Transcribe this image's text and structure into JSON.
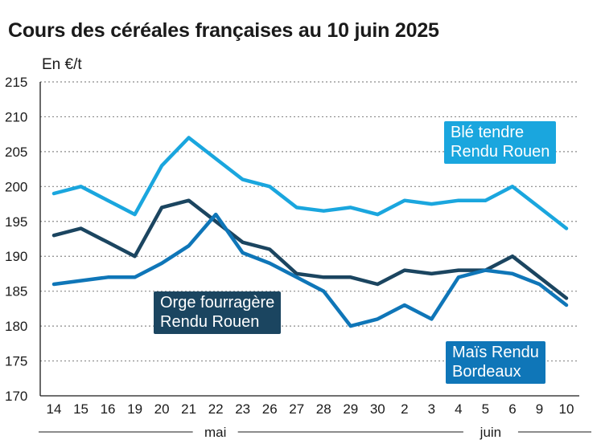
{
  "chart_data": {
    "type": "line",
    "title": "Cours des céréales françaises au 10 juin 2025",
    "ylabel": "En €/t",
    "ylim": [
      170,
      215
    ],
    "yticks": [
      170,
      175,
      180,
      185,
      190,
      195,
      200,
      205,
      210,
      215
    ],
    "categories": [
      "14",
      "15",
      "16",
      "19",
      "20",
      "21",
      "22",
      "23",
      "26",
      "27",
      "28",
      "29",
      "30",
      "2",
      "3",
      "4",
      "5",
      "6",
      "9",
      "10"
    ],
    "month_groups": [
      {
        "label": "mai",
        "from": 0,
        "to": 12
      },
      {
        "label": "juin",
        "from": 13,
        "to": 19
      }
    ],
    "grid": true,
    "series": [
      {
        "name": "Blé tendre Rendu Rouen",
        "label_lines": [
          "Blé tendre",
          "Rendu Rouen"
        ],
        "color": "#1aa6de",
        "values": [
          199,
          200,
          198,
          196,
          203,
          207,
          204,
          201,
          200,
          197,
          196.5,
          197,
          196,
          198,
          197.5,
          198,
          198,
          200,
          197,
          194
        ]
      },
      {
        "name": "Orge fourragère Rendu Rouen",
        "label_lines": [
          "Orge fourragère",
          "Rendu Rouen"
        ],
        "color": "#1b4560",
        "values": [
          193,
          194,
          192,
          190,
          197,
          198,
          195,
          192,
          191,
          187.5,
          187,
          187,
          186,
          188,
          187.5,
          188,
          188,
          190,
          187,
          184
        ]
      },
      {
        "name": "Maïs Rendu Bordeaux",
        "label_lines": [
          "Maïs Rendu",
          "Bordeaux"
        ],
        "color": "#0f76b8",
        "values": [
          186,
          186.5,
          187,
          187,
          189,
          191.5,
          196,
          190.5,
          189,
          187,
          185,
          180,
          181,
          183,
          181,
          187,
          188,
          187.5,
          186,
          183
        ]
      }
    ]
  }
}
